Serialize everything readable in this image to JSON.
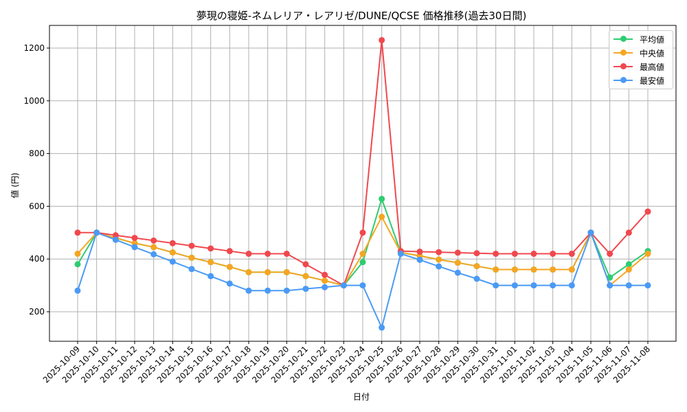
{
  "chart_data": {
    "type": "line",
    "title": "夢現の寝姫-ネムレリア・レアリゼ/DUNE/QCSE 価格推移(過去30日間)",
    "xlabel": "日付",
    "ylabel": "値 (円)",
    "ylim": [
      85,
      1285
    ],
    "yticks": [
      200,
      400,
      600,
      800,
      1000,
      1200
    ],
    "grid": true,
    "legend_position": "upper right",
    "x": [
      "2025-10-09",
      "2025-10-10",
      "2025-10-11",
      "2025-10-12",
      "2025-10-13",
      "2025-10-14",
      "2025-10-15",
      "2025-10-16",
      "2025-10-17",
      "2025-10-18",
      "2025-10-19",
      "2025-10-20",
      "2025-10-21",
      "2025-10-22",
      "2025-10-23",
      "2025-10-24",
      "2025-10-25",
      "2025-10-26",
      "2025-10-27",
      "2025-10-28",
      "2025-10-29",
      "2025-10-30",
      "2025-10-31",
      "2025-11-01",
      "2025-11-02",
      "2025-11-03",
      "2025-11-04",
      "2025-11-05",
      "2025-11-06",
      "2025-11-07",
      "2025-11-08"
    ],
    "series": [
      {
        "name": "平均値",
        "color": "#2ecc71",
        "values": [
          380,
          500,
          480,
          460,
          445,
          425,
          405,
          388,
          370,
          350,
          350,
          350,
          335,
          318,
          300,
          388,
          628,
          425,
          412,
          398,
          386,
          373,
          360,
          360,
          360,
          360,
          360,
          500,
          330,
          380,
          430
        ]
      },
      {
        "name": "中央値",
        "color": "#f5a623",
        "values": [
          420,
          500,
          480,
          460,
          445,
          425,
          405,
          388,
          370,
          350,
          350,
          350,
          335,
          318,
          300,
          420,
          560,
          425,
          412,
          398,
          386,
          373,
          360,
          360,
          360,
          360,
          360,
          500,
          300,
          360,
          420
        ]
      },
      {
        "name": "最高値",
        "color": "#f0484e",
        "values": [
          500,
          500,
          490,
          480,
          470,
          460,
          450,
          440,
          430,
          420,
          420,
          420,
          380,
          340,
          300,
          500,
          1230,
          430,
          428,
          426,
          424,
          422,
          420,
          420,
          420,
          420,
          420,
          500,
          420,
          500,
          580
        ]
      },
      {
        "name": "最安値",
        "color": "#4a9af5",
        "values": [
          280,
          500,
          473,
          445,
          418,
          390,
          362,
          335,
          307,
          280,
          280,
          280,
          287,
          293,
          300,
          300,
          140,
          420,
          397,
          372,
          348,
          325,
          300,
          300,
          300,
          300,
          300,
          500,
          300,
          300,
          300
        ]
      }
    ]
  },
  "legend": {
    "items": [
      {
        "label": "平均値",
        "color": "#2ecc71"
      },
      {
        "label": "中央値",
        "color": "#f5a623"
      },
      {
        "label": "最高値",
        "color": "#f0484e"
      },
      {
        "label": "最安値",
        "color": "#4a9af5"
      }
    ]
  }
}
